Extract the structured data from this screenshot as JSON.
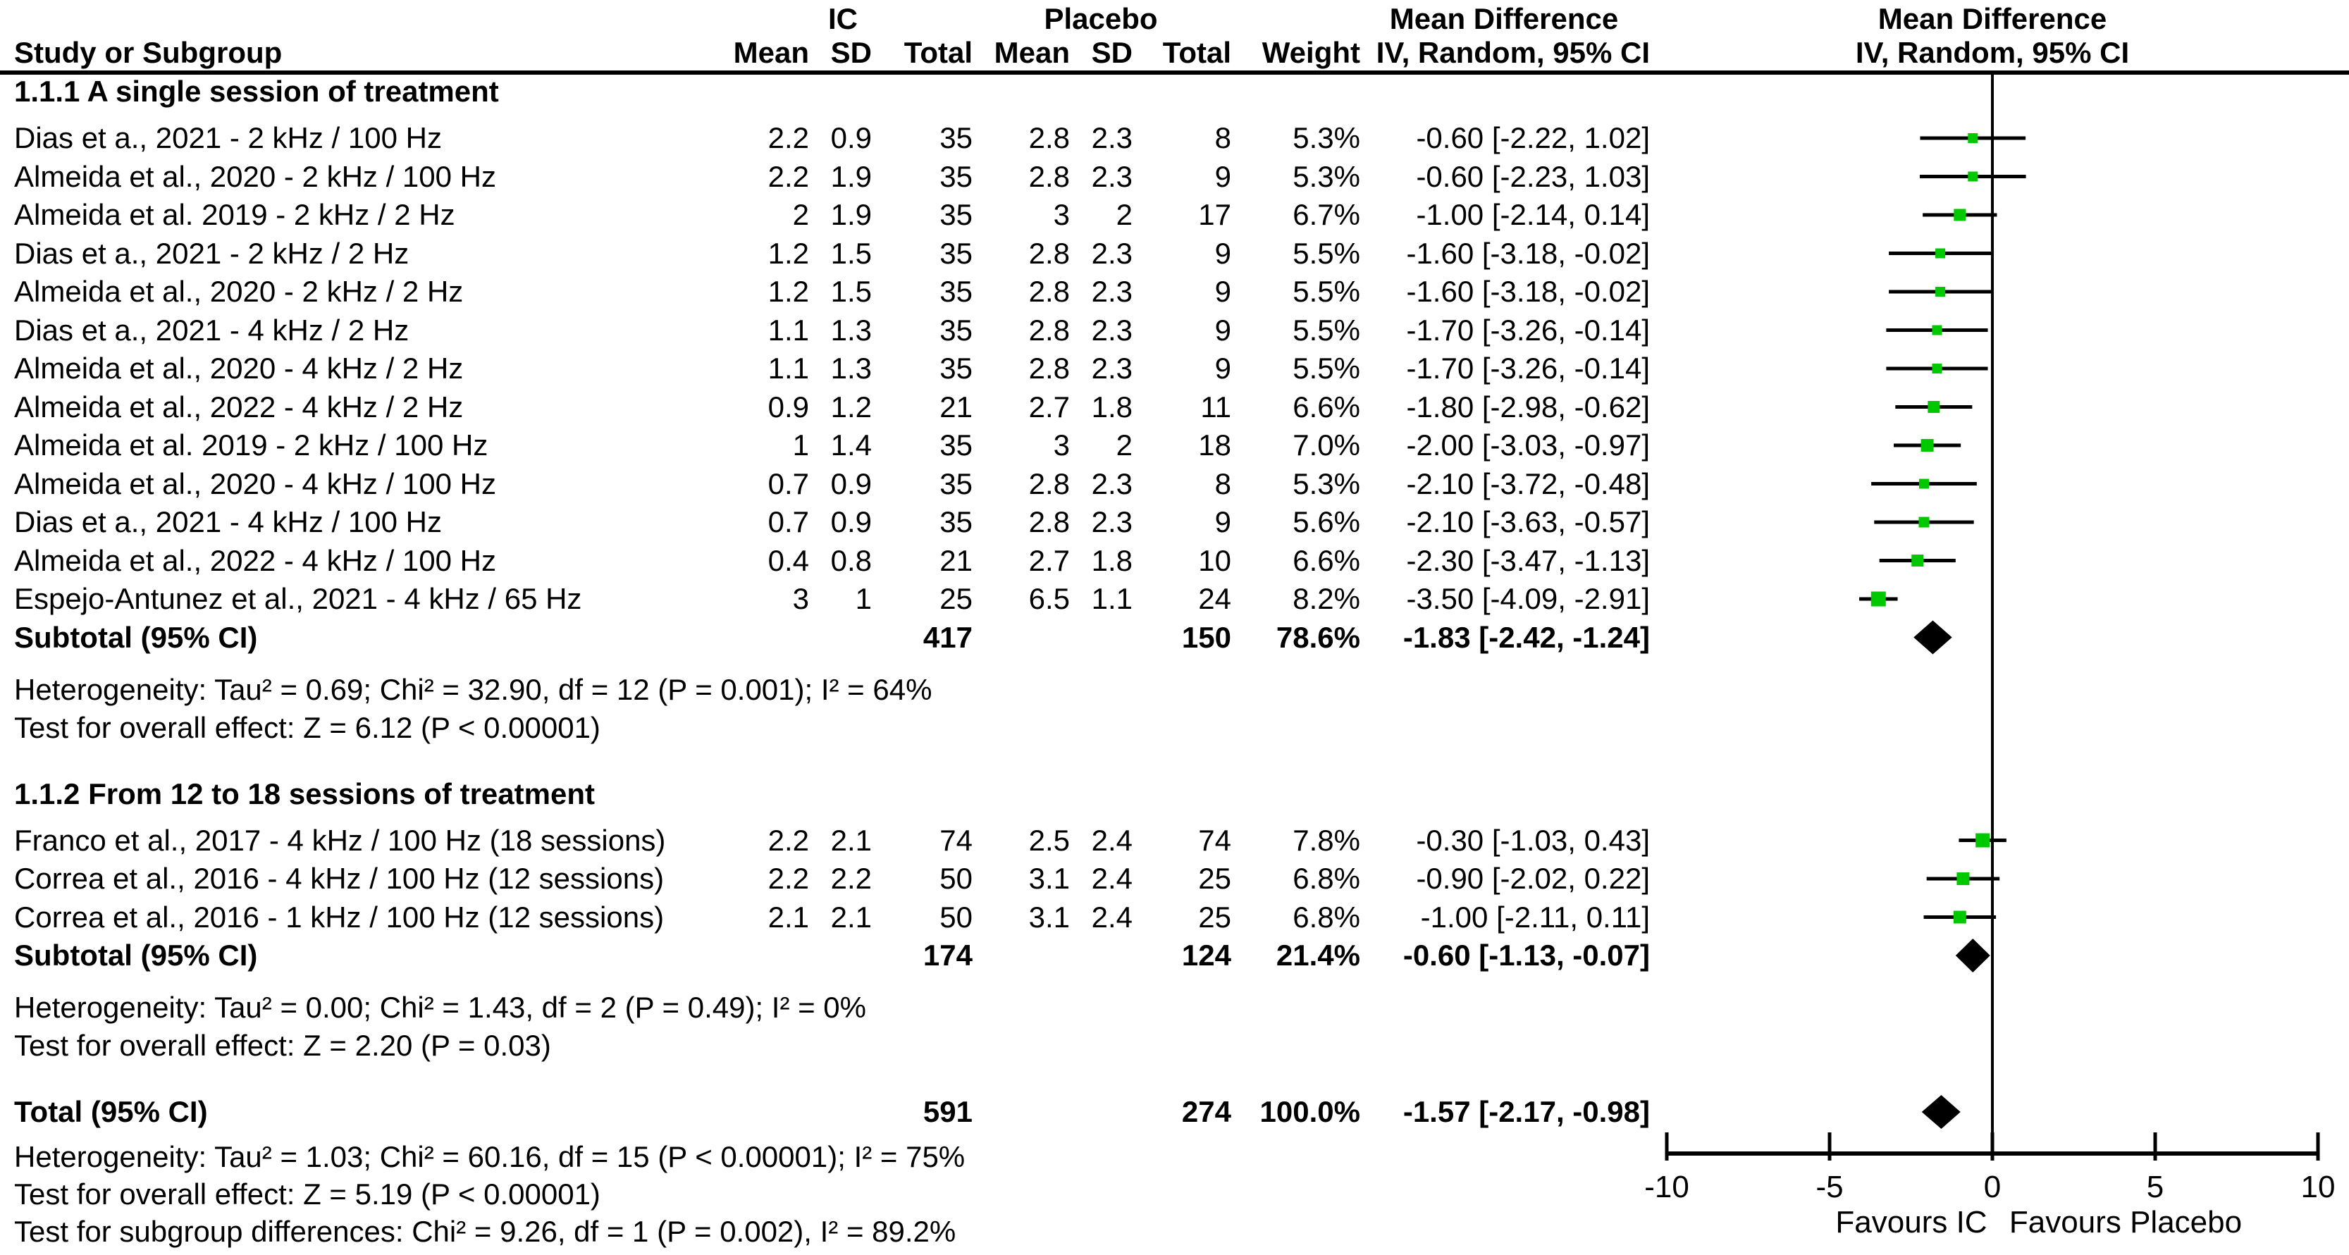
{
  "header": {
    "ic": "IC",
    "placebo": "Placebo",
    "md_left": "Mean Difference",
    "md_left_sub": "IV, Random, 95% CI",
    "md_right": "Mean Difference",
    "md_right_sub": "IV, Random, 95% CI",
    "study": "Study or Subgroup",
    "cols": [
      "Mean",
      "SD",
      "Total",
      "Mean",
      "SD",
      "Total",
      "Weight"
    ]
  },
  "colors": {
    "marker_green": "#00c800",
    "diamond_black": "#000000",
    "line_black": "#000000"
  },
  "chart_data": {
    "type": "forest",
    "x_axis": {
      "min": -10,
      "max": 10,
      "ticks": [
        -10,
        -5,
        0,
        5,
        10
      ]
    },
    "favours_left": "Favours IC",
    "favours_right": "Favours Placebo",
    "groups": [
      {
        "label": "1.1.1 A single session of treatment",
        "studies": [
          {
            "name": "Dias et a., 2021 - 2 kHz / 100 Hz",
            "mean1": "2.2",
            "sd1": "0.9",
            "n1": "35",
            "mean2": "2.8",
            "sd2": "2.3",
            "n2": "8",
            "weight": "5.3%",
            "ci": "-0.60 [-2.22, 1.02]",
            "md": -0.6,
            "lo": -2.22,
            "hi": 1.02,
            "w": 5.3
          },
          {
            "name": "Almeida et al., 2020 - 2 kHz / 100 Hz",
            "mean1": "2.2",
            "sd1": "1.9",
            "n1": "35",
            "mean2": "2.8",
            "sd2": "2.3",
            "n2": "9",
            "weight": "5.3%",
            "ci": "-0.60 [-2.23, 1.03]",
            "md": -0.6,
            "lo": -2.23,
            "hi": 1.03,
            "w": 5.3
          },
          {
            "name": "Almeida et al. 2019 - 2 kHz / 2 Hz",
            "mean1": "2",
            "sd1": "1.9",
            "n1": "35",
            "mean2": "3",
            "sd2": "2",
            "n2": "17",
            "weight": "6.7%",
            "ci": "-1.00 [-2.14, 0.14]",
            "md": -1.0,
            "lo": -2.14,
            "hi": 0.14,
            "w": 6.7
          },
          {
            "name": "Dias et a., 2021 - 2 kHz / 2 Hz",
            "mean1": "1.2",
            "sd1": "1.5",
            "n1": "35",
            "mean2": "2.8",
            "sd2": "2.3",
            "n2": "9",
            "weight": "5.5%",
            "ci": "-1.60 [-3.18, -0.02]",
            "md": -1.6,
            "lo": -3.18,
            "hi": -0.02,
            "w": 5.5
          },
          {
            "name": "Almeida et al., 2020 - 2 kHz / 2 Hz",
            "mean1": "1.2",
            "sd1": "1.5",
            "n1": "35",
            "mean2": "2.8",
            "sd2": "2.3",
            "n2": "9",
            "weight": "5.5%",
            "ci": "-1.60 [-3.18, -0.02]",
            "md": -1.6,
            "lo": -3.18,
            "hi": -0.02,
            "w": 5.5
          },
          {
            "name": "Dias et a., 2021 - 4 kHz / 2 Hz",
            "mean1": "1.1",
            "sd1": "1.3",
            "n1": "35",
            "mean2": "2.8",
            "sd2": "2.3",
            "n2": "9",
            "weight": "5.5%",
            "ci": "-1.70 [-3.26, -0.14]",
            "md": -1.7,
            "lo": -3.26,
            "hi": -0.14,
            "w": 5.5
          },
          {
            "name": "Almeida et al., 2020 - 4 kHz / 2 Hz",
            "mean1": "1.1",
            "sd1": "1.3",
            "n1": "35",
            "mean2": "2.8",
            "sd2": "2.3",
            "n2": "9",
            "weight": "5.5%",
            "ci": "-1.70 [-3.26, -0.14]",
            "md": -1.7,
            "lo": -3.26,
            "hi": -0.14,
            "w": 5.5
          },
          {
            "name": "Almeida et al., 2022 - 4 kHz / 2 Hz",
            "mean1": "0.9",
            "sd1": "1.2",
            "n1": "21",
            "mean2": "2.7",
            "sd2": "1.8",
            "n2": "11",
            "weight": "6.6%",
            "ci": "-1.80 [-2.98, -0.62]",
            "md": -1.8,
            "lo": -2.98,
            "hi": -0.62,
            "w": 6.6
          },
          {
            "name": "Almeida et al. 2019 - 2 kHz / 100 Hz",
            "mean1": "1",
            "sd1": "1.4",
            "n1": "35",
            "mean2": "3",
            "sd2": "2",
            "n2": "18",
            "weight": "7.0%",
            "ci": "-2.00 [-3.03, -0.97]",
            "md": -2.0,
            "lo": -3.03,
            "hi": -0.97,
            "w": 7.0
          },
          {
            "name": "Almeida et al., 2020 - 4 kHz / 100 Hz",
            "mean1": "0.7",
            "sd1": "0.9",
            "n1": "35",
            "mean2": "2.8",
            "sd2": "2.3",
            "n2": "8",
            "weight": "5.3%",
            "ci": "-2.10 [-3.72, -0.48]",
            "md": -2.1,
            "lo": -3.72,
            "hi": -0.48,
            "w": 5.3
          },
          {
            "name": "Dias et a., 2021 - 4 kHz / 100 Hz",
            "mean1": "0.7",
            "sd1": "0.9",
            "n1": "35",
            "mean2": "2.8",
            "sd2": "2.3",
            "n2": "9",
            "weight": "5.6%",
            "ci": "-2.10 [-3.63, -0.57]",
            "md": -2.1,
            "lo": -3.63,
            "hi": -0.57,
            "w": 5.6
          },
          {
            "name": "Almeida et al., 2022 - 4 kHz / 100 Hz",
            "mean1": "0.4",
            "sd1": "0.8",
            "n1": "21",
            "mean2": "2.7",
            "sd2": "1.8",
            "n2": "10",
            "weight": "6.6%",
            "ci": "-2.30 [-3.47, -1.13]",
            "md": -2.3,
            "lo": -3.47,
            "hi": -1.13,
            "w": 6.6
          },
          {
            "name": "Espejo-Antunez et al., 2021 - 4 kHz / 65 Hz",
            "mean1": "3",
            "sd1": "1",
            "n1": "25",
            "mean2": "6.5",
            "sd2": "1.1",
            "n2": "24",
            "weight": "8.2%",
            "ci": "-3.50 [-4.09, -2.91]",
            "md": -3.5,
            "lo": -4.09,
            "hi": -2.91,
            "w": 8.2
          }
        ],
        "subtotal": {
          "label": "Subtotal (95% CI)",
          "n1": "417",
          "n2": "150",
          "weight": "78.6%",
          "ci": "-1.83 [-2.42, -1.24]",
          "md": -1.83,
          "lo": -2.42,
          "hi": -1.24
        },
        "footnotes": [
          "Heterogeneity: Tau² = 0.69; Chi² = 32.90, df = 12 (P = 0.001); I² = 64%",
          "Test for overall effect: Z = 6.12 (P < 0.00001)"
        ]
      },
      {
        "label": "1.1.2 From 12 to 18 sessions of treatment",
        "studies": [
          {
            "name": "Franco et al., 2017 - 4 kHz / 100 Hz (18 sessions)",
            "mean1": "2.2",
            "sd1": "2.1",
            "n1": "74",
            "mean2": "2.5",
            "sd2": "2.4",
            "n2": "74",
            "weight": "7.8%",
            "ci": "-0.30 [-1.03, 0.43]",
            "md": -0.3,
            "lo": -1.03,
            "hi": 0.43,
            "w": 7.8
          },
          {
            "name": "Correa et al., 2016 - 4 kHz / 100 Hz (12 sessions)",
            "mean1": "2.2",
            "sd1": "2.2",
            "n1": "50",
            "mean2": "3.1",
            "sd2": "2.4",
            "n2": "25",
            "weight": "6.8%",
            "ci": "-0.90 [-2.02, 0.22]",
            "md": -0.9,
            "lo": -2.02,
            "hi": 0.22,
            "w": 6.8
          },
          {
            "name": "Correa et al., 2016 - 1 kHz / 100 Hz (12 sessions)",
            "mean1": "2.1",
            "sd1": "2.1",
            "n1": "50",
            "mean2": "3.1",
            "sd2": "2.4",
            "n2": "25",
            "weight": "6.8%",
            "ci": "-1.00 [-2.11, 0.11]",
            "md": -1.0,
            "lo": -2.11,
            "hi": 0.11,
            "w": 6.8
          }
        ],
        "subtotal": {
          "label": "Subtotal (95% CI)",
          "n1": "174",
          "n2": "124",
          "weight": "21.4%",
          "ci": "-0.60 [-1.13, -0.07]",
          "md": -0.6,
          "lo": -1.13,
          "hi": -0.07
        },
        "footnotes": [
          "Heterogeneity: Tau² = 0.00; Chi² = 1.43, df = 2 (P = 0.49); I² = 0%",
          "Test for overall effect: Z = 2.20 (P = 0.03)"
        ]
      }
    ],
    "total": {
      "label": "Total (95% CI)",
      "n1": "591",
      "n2": "274",
      "weight": "100.0%",
      "ci": "-1.57 [-2.17, -0.98]",
      "md": -1.57,
      "lo": -2.17,
      "hi": -0.98
    },
    "total_footnotes": [
      "Heterogeneity: Tau² = 1.03; Chi² = 60.16, df = 15 (P < 0.00001); I² = 75%",
      "Test for overall effect: Z = 5.19 (P < 0.00001)",
      "Test for subgroup differences: Chi² = 9.26, df = 1 (P = 0.002), I² = 89.2%"
    ]
  }
}
